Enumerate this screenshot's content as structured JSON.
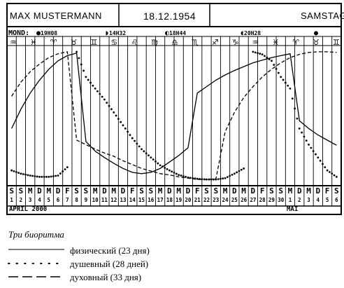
{
  "header": {
    "name": "MAX MUSTERMANN",
    "date": "18.12.1954",
    "weekday": "SAMSTAG"
  },
  "moon": {
    "label": "MOND:",
    "phases": [
      {
        "symbol": "●",
        "time": "19H08"
      },
      {
        "symbol": "◗",
        "time": "14H32"
      },
      {
        "symbol": "◐",
        "time": "18H44"
      },
      {
        "symbol": "◖",
        "time": "20H28"
      },
      {
        "symbol": "●",
        "time": ""
      }
    ]
  },
  "zodiac": [
    "♒",
    "♓",
    "♈",
    "♉",
    "♊",
    "♋",
    "♌",
    "♍",
    "♎",
    "♏",
    "♐",
    "♑",
    "♒",
    "♓",
    "♈",
    "♉",
    "♊"
  ],
  "days": {
    "letters": [
      "S",
      "S",
      "M",
      "D",
      "M",
      "D",
      "F",
      "S",
      "S",
      "M",
      "D",
      "M",
      "D",
      "F",
      "S",
      "S",
      "M",
      "D",
      "M",
      "D",
      "F",
      "S",
      "S",
      "M",
      "D",
      "M",
      "D",
      "F",
      "S",
      "S",
      "M",
      "D",
      "M",
      "D",
      "F",
      "S"
    ],
    "numbers": [
      "1",
      "2",
      "3",
      "4",
      "5",
      "6",
      "7",
      "8",
      "9",
      "10",
      "11",
      "12",
      "13",
      "14",
      "15",
      "16",
      "17",
      "18",
      "19",
      "20",
      "21",
      "22",
      "23",
      "24",
      "25",
      "26",
      "27",
      "28",
      "29",
      "30",
      "1",
      "2",
      "3",
      "4",
      "5",
      "6"
    ]
  },
  "months": {
    "first": "APRIL 2000",
    "second": "MAI"
  },
  "legend": {
    "title": "Три биоритма",
    "items": [
      {
        "text": "физический (23 дня)",
        "style": "solid"
      },
      {
        "text": "душевный (28 дней)",
        "style": "dotted"
      },
      {
        "text": "духовный (33 дня)",
        "style": "dashed"
      }
    ]
  },
  "chart_data": {
    "type": "line",
    "x": [
      1,
      2,
      3,
      4,
      5,
      6,
      7,
      8,
      9,
      10,
      11,
      12,
      13,
      14,
      15,
      16,
      17,
      18,
      19,
      20,
      21,
      22,
      23,
      24,
      25,
      26,
      27,
      28,
      29,
      30,
      31,
      32,
      33,
      34,
      35,
      36
    ],
    "series": [
      {
        "style": "solid",
        "period_days": 23,
        "values": [
          -0.2,
          0.1,
          0.35,
          0.55,
          0.72,
          0.85,
          0.93,
          0.97,
          -0.4,
          -0.55,
          -0.65,
          -0.74,
          -0.82,
          -0.88,
          -0.9,
          -0.88,
          -0.82,
          -0.72,
          -0.62,
          -0.5,
          0.35,
          0.45,
          0.55,
          0.63,
          0.7,
          0.76,
          0.82,
          0.86,
          0.9,
          0.93,
          0.96,
          -0.08,
          -0.2,
          -0.3,
          -0.38,
          -0.46
        ]
      },
      {
        "style": "dotted",
        "period_days": 28,
        "values": [
          -0.85,
          -0.9,
          -0.93,
          -0.95,
          -0.95,
          -0.93,
          -0.8,
          0.99,
          0.6,
          0.42,
          0.25,
          0.05,
          -0.15,
          -0.35,
          -0.52,
          -0.65,
          -0.77,
          -0.85,
          -0.92,
          -0.96,
          -0.98,
          -0.99,
          -0.99,
          -0.97,
          -0.9,
          -0.82,
          0.99,
          0.95,
          0.85,
          0.6,
          0.42,
          -0.2,
          -0.45,
          -0.65,
          -0.85,
          -0.95
        ]
      },
      {
        "style": "dashed",
        "period_days": 33,
        "values": [
          0.3,
          0.52,
          0.68,
          0.8,
          0.9,
          0.96,
          0.99,
          -0.38,
          -0.45,
          -0.52,
          -0.58,
          -0.63,
          -0.7,
          -0.76,
          -0.82,
          -0.86,
          -0.9,
          -0.92,
          -0.95,
          -0.97,
          -0.99,
          -0.99,
          -0.98,
          -0.25,
          0.05,
          0.28,
          0.45,
          0.6,
          0.72,
          0.82,
          0.9,
          0.95,
          0.98,
          0.99,
          0.99,
          0.98
        ]
      }
    ],
    "ylim": [
      -1,
      1
    ],
    "grid": true
  }
}
